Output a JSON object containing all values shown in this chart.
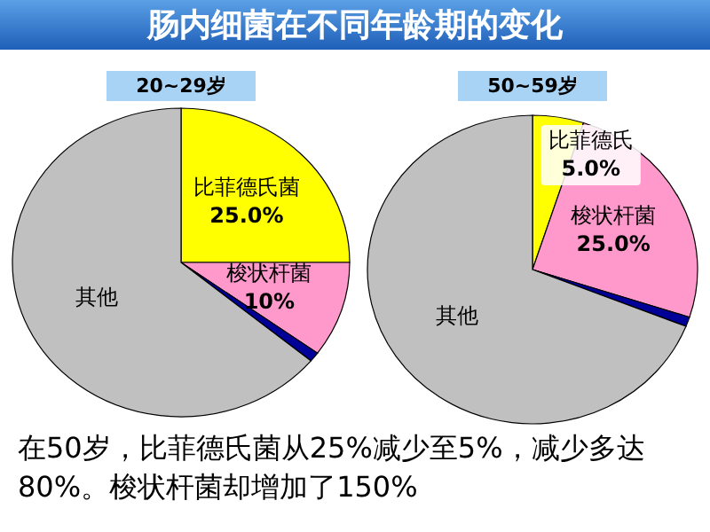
{
  "chart_data": [
    {
      "type": "pie",
      "title": "肠内细菌在不同年龄期的变化",
      "subtitle": "20~29岁",
      "categories": [
        "比菲德氏菌",
        "梭状杆菌",
        null,
        "其他"
      ],
      "values": [
        25,
        10,
        1,
        64
      ],
      "colors": [
        "#ffff00",
        "#ff99cc",
        "#000099",
        "#c0c0c0"
      ],
      "value_labels": [
        "25.0%",
        "10%",
        null,
        null
      ]
    },
    {
      "type": "pie",
      "subtitle": "50~59岁",
      "categories": [
        "比菲德氏",
        "梭状杆菌",
        null,
        "其他"
      ],
      "values": [
        5,
        25,
        1,
        69
      ],
      "colors": [
        "#ffff00",
        "#ff99cc",
        "#000099",
        "#c0c0c0"
      ],
      "value_labels": [
        "5.0%",
        "25.0%",
        null,
        null
      ],
      "annotations": [
        "在50岁，比菲德氏菌从25%减少至5%，减少多达80%。梭状杆菌却增加了150%"
      ]
    }
  ]
}
